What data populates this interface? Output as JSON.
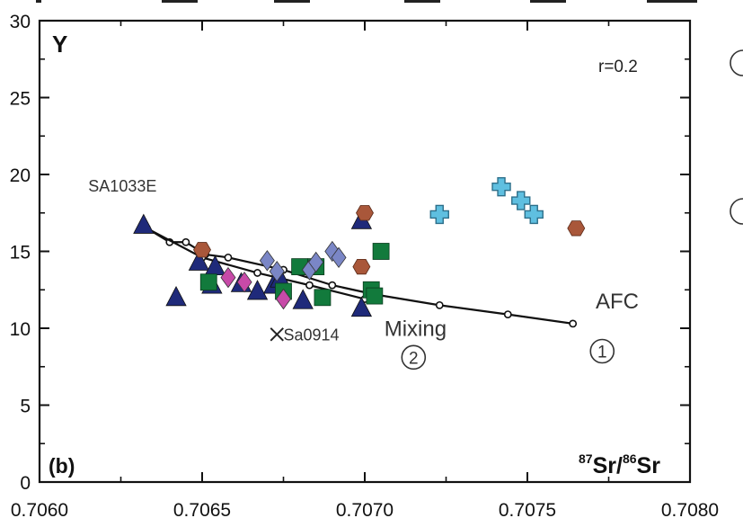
{
  "chart_data": {
    "type": "scatter",
    "title": "",
    "xlabel": "",
    "ylabel": "",
    "panel_label": "(b)",
    "axis_title_y": "Y",
    "axis_title_x": {
      "sup1": "87",
      "base1": "Sr/",
      "sup2": "86",
      "base2": "Sr"
    },
    "r_label": "r=0.2",
    "xlim": [
      0.706,
      0.708
    ],
    "ylim": [
      0,
      30
    ],
    "x_ticks": [
      0.706,
      0.7065,
      0.707,
      0.7075,
      0.708
    ],
    "x_tick_labels": [
      "0.7060",
      "0.7065",
      "0.7070",
      "0.7075",
      "0.7080"
    ],
    "y_ticks": [
      0,
      5,
      10,
      15,
      20,
      25,
      30
    ],
    "y_tick_labels": [
      "0",
      "5",
      "10",
      "15",
      "20",
      "25",
      "30"
    ],
    "grid": false,
    "legend": "none",
    "series": [
      {
        "marker": "triangle",
        "color": "#1f2a7a",
        "points": [
          [
            0.70632,
            16.7
          ],
          [
            0.70642,
            12.0
          ],
          [
            0.70649,
            14.3
          ],
          [
            0.70654,
            14.0
          ],
          [
            0.70653,
            12.8
          ],
          [
            0.70662,
            12.9
          ],
          [
            0.70667,
            12.4
          ],
          [
            0.70672,
            12.8
          ],
          [
            0.70674,
            13.2
          ],
          [
            0.70681,
            11.8
          ],
          [
            0.70699,
            17.0
          ],
          [
            0.70699,
            11.3
          ]
        ]
      },
      {
        "marker": "square",
        "color": "#127a3c",
        "points": [
          [
            0.70652,
            13.0
          ],
          [
            0.70675,
            12.4
          ],
          [
            0.7068,
            14.0
          ],
          [
            0.70685,
            14.0
          ],
          [
            0.70687,
            12.0
          ],
          [
            0.70702,
            12.5
          ],
          [
            0.70703,
            12.1
          ],
          [
            0.70705,
            15.0
          ]
        ]
      },
      {
        "marker": "diamond",
        "color": "#7a86c6",
        "points": [
          [
            0.7067,
            14.4
          ],
          [
            0.70673,
            13.7
          ],
          [
            0.70683,
            13.8
          ],
          [
            0.70685,
            14.3
          ],
          [
            0.7069,
            15.0
          ],
          [
            0.70692,
            14.6
          ]
        ]
      },
      {
        "marker": "diamond",
        "color": "#c74aa8",
        "points": [
          [
            0.70658,
            13.3
          ],
          [
            0.70663,
            13.0
          ],
          [
            0.70675,
            11.9
          ]
        ]
      },
      {
        "marker": "hexagon",
        "color": "#a9573a",
        "points": [
          [
            0.7065,
            15.1
          ],
          [
            0.70699,
            14.0
          ],
          [
            0.707,
            17.5
          ],
          [
            0.70765,
            16.5
          ]
        ]
      },
      {
        "marker": "cross",
        "color": "#5fbfe0",
        "points": [
          [
            0.70723,
            17.4
          ],
          [
            0.70742,
            19.2
          ],
          [
            0.70748,
            18.3
          ],
          [
            0.70752,
            17.4
          ]
        ]
      },
      {
        "marker": "x",
        "color": "#222222",
        "points": [
          [
            0.70673,
            9.6
          ]
        ]
      }
    ],
    "curves": [
      {
        "name": "AFC",
        "points": [
          [
            0.70633,
            16.5
          ],
          [
            0.7064,
            15.6
          ],
          [
            0.70645,
            15.6
          ],
          [
            0.70651,
            14.8
          ],
          [
            0.70658,
            14.6
          ],
          [
            0.70675,
            13.8
          ],
          [
            0.7069,
            12.8
          ],
          [
            0.70703,
            12.2
          ],
          [
            0.70723,
            11.5
          ],
          [
            0.70744,
            10.9
          ],
          [
            0.70764,
            10.3
          ]
        ]
      },
      {
        "name": "Mixing",
        "points": [
          [
            0.70633,
            16.5
          ],
          [
            0.7065,
            14.6
          ],
          [
            0.70667,
            13.6
          ],
          [
            0.70683,
            12.8
          ],
          [
            0.707,
            11.9
          ]
        ]
      }
    ],
    "annotations": [
      {
        "text": "SA1033E",
        "x": 0.70615,
        "y": 18.9
      },
      {
        "text": "Sa0914",
        "x": 0.70675,
        "y": 9.2
      },
      {
        "text": "Mixing",
        "x": 0.70706,
        "y": 9.5
      },
      {
        "text": "AFC",
        "x": 0.70771,
        "y": 11.3
      },
      {
        "text": "1",
        "x": 0.70773,
        "y": 8.1,
        "circled": true
      },
      {
        "text": "2",
        "x": 0.70715,
        "y": 7.7,
        "circled": true
      }
    ]
  }
}
